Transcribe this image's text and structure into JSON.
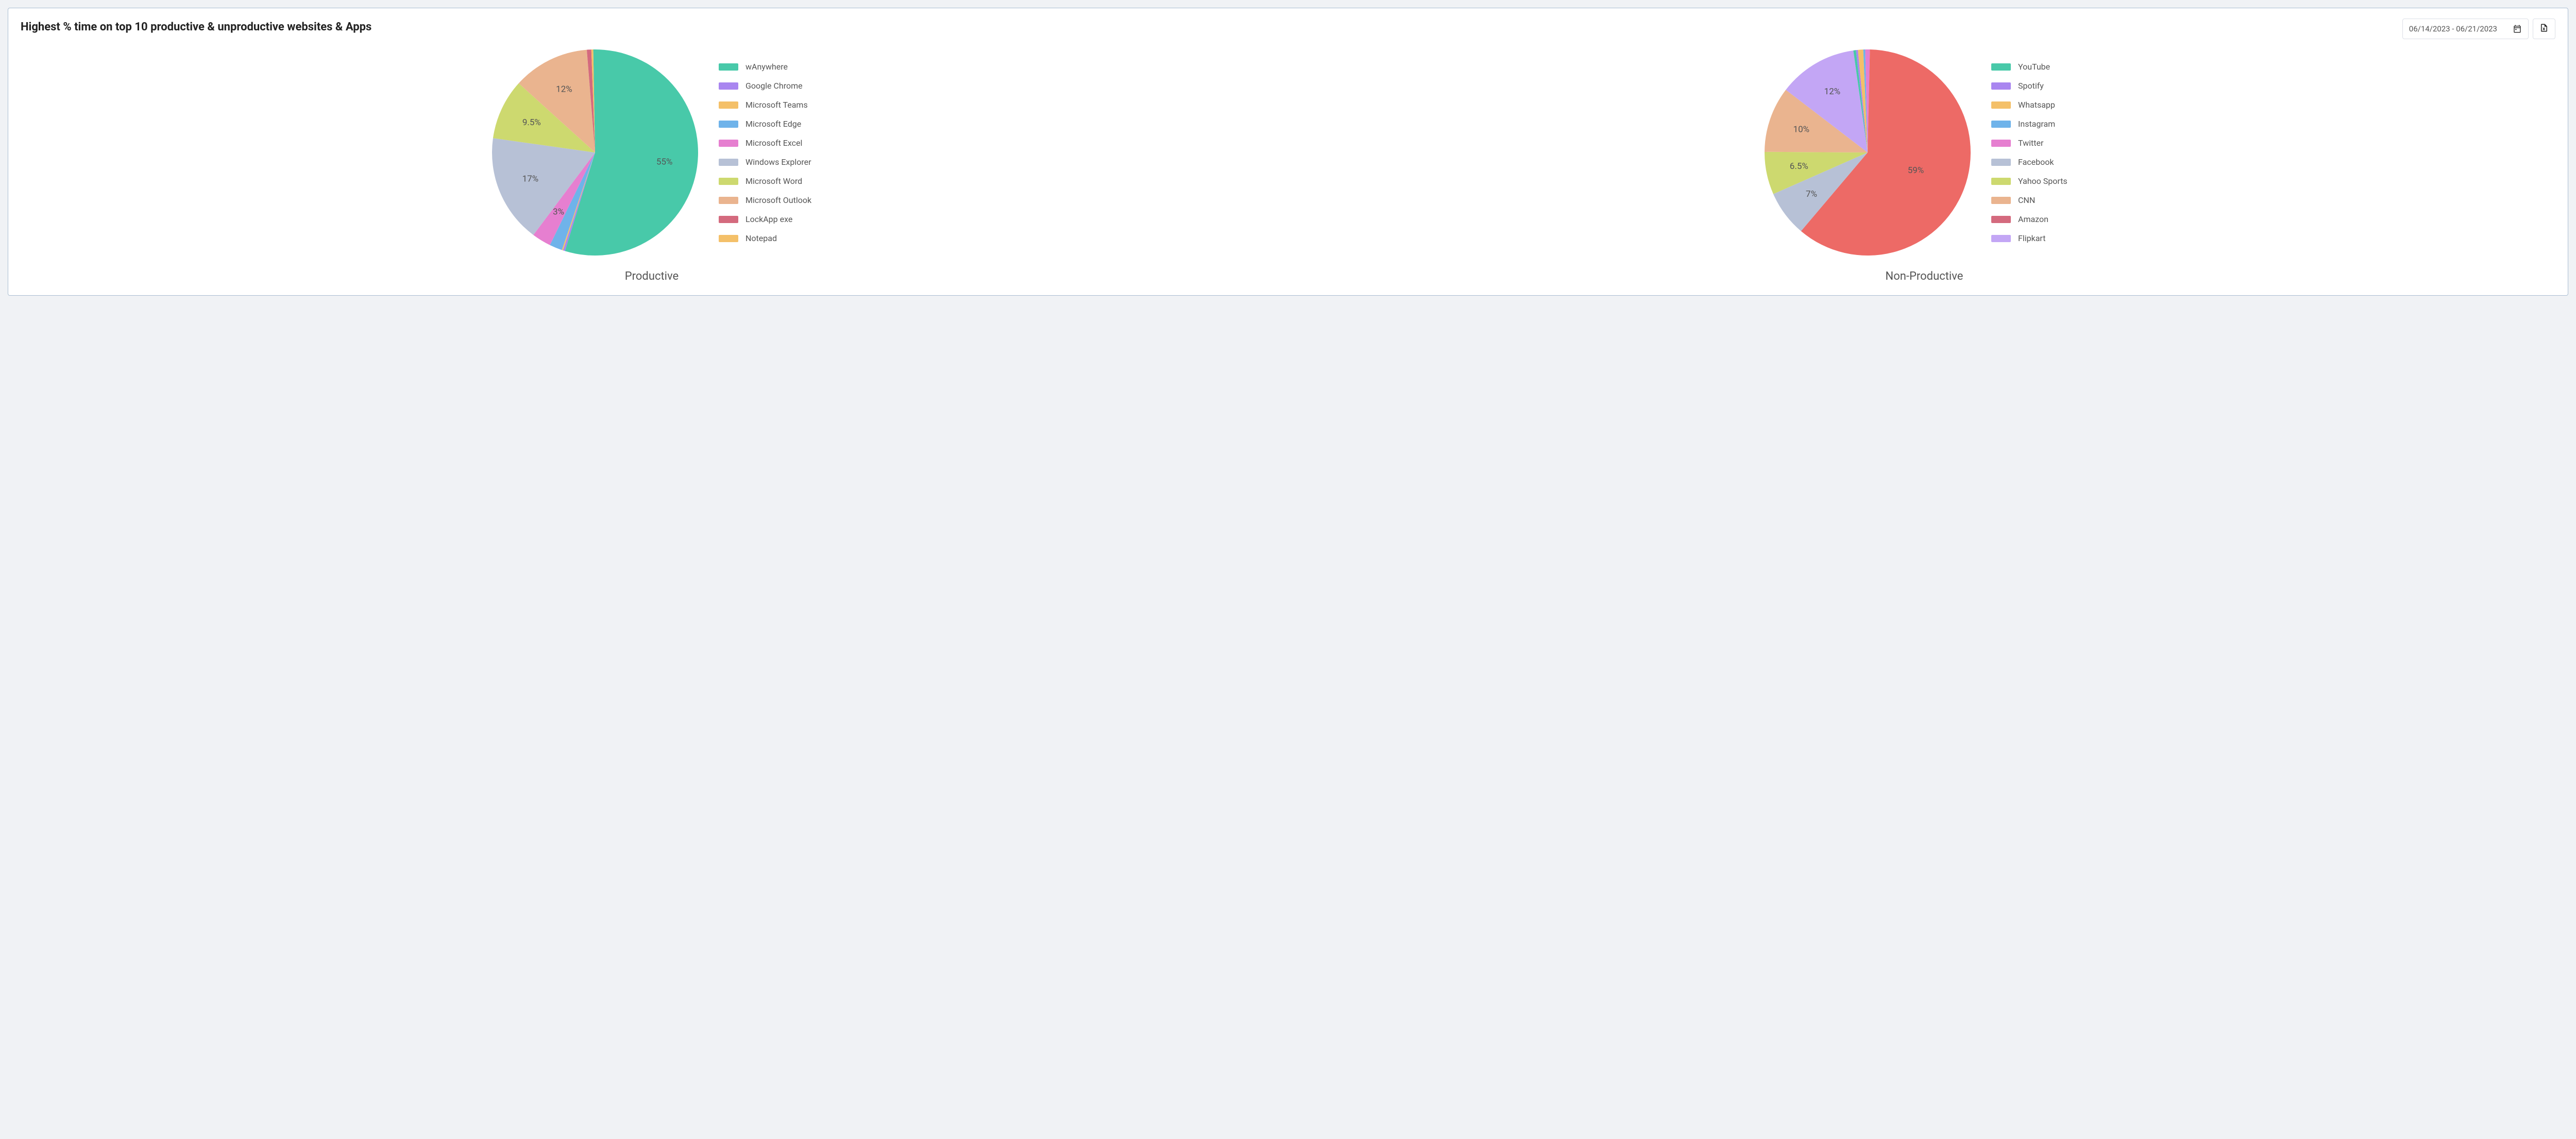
{
  "card": {
    "title": "Highest % time on top 10 productive & unproductive websites & Apps",
    "date_range": "06/14/2023 - 06/21/2023",
    "background_color": "#ffffff",
    "border_color": "#a9bdd1"
  },
  "palette": {
    "text_primary": "#222222",
    "text_secondary": "#555555",
    "label_fontsize": 17,
    "legend_fontsize": 16,
    "caption_fontsize": 22
  },
  "charts": [
    {
      "id": "productive",
      "type": "pie",
      "caption": "Productive",
      "pie_radius": 200,
      "start_angle_deg": -1,
      "slices": [
        {
          "label": "wAnywhere",
          "value": 55,
          "color": "#48c9a9",
          "show_label": true,
          "display": "55%"
        },
        {
          "label": "Google Chrome",
          "value": 0.3,
          "color": "#a986f0",
          "show_label": false,
          "display": ""
        },
        {
          "label": "Microsoft Teams",
          "value": 0.2,
          "color": "#f4c069",
          "show_label": false,
          "display": ""
        },
        {
          "label": "Microsoft Edge",
          "value": 2.0,
          "color": "#6fb3ea",
          "show_label": false,
          "display": ""
        },
        {
          "label": "Microsoft Excel",
          "value": 3.0,
          "color": "#e67fd0",
          "show_label": true,
          "display": "3%"
        },
        {
          "label": "Windows Explorer",
          "value": 17,
          "color": "#b7c1d6",
          "show_label": true,
          "display": "17%"
        },
        {
          "label": "Microsoft Word",
          "value": 9.5,
          "color": "#cdd96f",
          "show_label": true,
          "display": "9.5%"
        },
        {
          "label": "Microsoft Outlook",
          "value": 12,
          "color": "#eab48f",
          "show_label": true,
          "display": "12%"
        },
        {
          "label": "LockApp exe",
          "value": 0.7,
          "color": "#d46a7e",
          "show_label": false,
          "display": ""
        },
        {
          "label": "Notepad",
          "value": 0.3,
          "color": "#f4c069",
          "show_label": false,
          "display": ""
        }
      ]
    },
    {
      "id": "nonproductive",
      "type": "pie",
      "caption": "Non-Productive",
      "pie_radius": 200,
      "start_angle_deg": -8,
      "slices": [
        {
          "label": "YouTube",
          "value": 0.4,
          "color": "#48c9a9",
          "show_label": false,
          "display": ""
        },
        {
          "label": "Spotify",
          "value": 0.3,
          "color": "#a986f0",
          "show_label": false,
          "display": ""
        },
        {
          "label": "Whatsapp",
          "value": 0.8,
          "color": "#f4c069",
          "show_label": false,
          "display": ""
        },
        {
          "label": "Instagram",
          "value": 0.3,
          "color": "#6fb3ea",
          "show_label": false,
          "display": ""
        },
        {
          "label": "Twitter",
          "value": 0.7,
          "color": "#e67fd0",
          "show_label": false,
          "display": ""
        },
        {
          "label": "Facebook",
          "value": 59,
          "color": "#ed6a66",
          "show_label": true,
          "display": "59%",
          "label_r_factor": 0.5
        },
        {
          "label": "Yahoo Sports",
          "value": 7,
          "color": "#b7c1d6",
          "show_label": true,
          "display": "7%"
        },
        {
          "label": "CNN",
          "value": 6.5,
          "color": "#cdd96f",
          "show_label": true,
          "display": "6.5%"
        },
        {
          "label": "Amazon",
          "value": 10,
          "color": "#eab48f",
          "show_label": true,
          "display": "10%"
        },
        {
          "label": "Flipkart",
          "value": 12,
          "color": "#c3a6f5",
          "show_label": true,
          "display": "12%"
        }
      ],
      "legend_colors_override": {
        "Facebook": "#b7c1d6",
        "Yahoo Sports": "#cdd96f",
        "CNN": "#eab48f",
        "Amazon": "#d46a7e",
        "Flipkart": "#c3a6f5"
      }
    }
  ]
}
